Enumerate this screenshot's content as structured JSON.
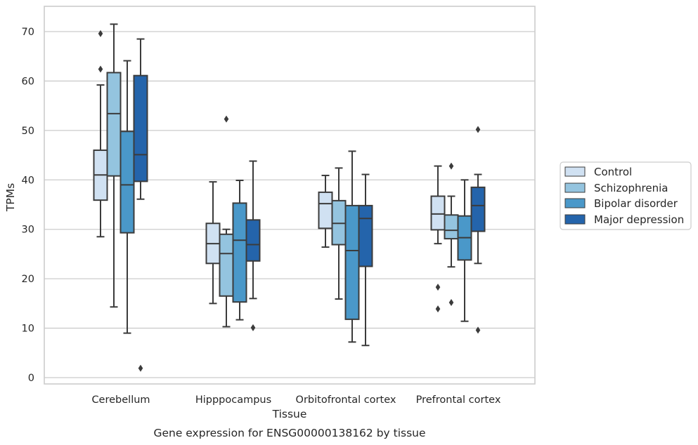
{
  "chart_data": {
    "type": "box",
    "xlabel": "Tissue",
    "ylabel": "TPMs",
    "caption": "Gene expression for ENSG00000138162 by tissue",
    "ylim": [
      -1.2,
      75
    ],
    "yticks": [
      0,
      10,
      20,
      30,
      40,
      50,
      60,
      70
    ],
    "ytick_labels": [
      "0",
      "10",
      "20",
      "30",
      "40",
      "50",
      "60",
      "70"
    ],
    "grid": "horizontal",
    "legend_position": "right",
    "categories": [
      "Cerebellum",
      "Hipppocampus",
      "Orbitofrontal cortex",
      "Prefrontal cortex"
    ],
    "series": [
      {
        "name": "Control",
        "color": "#d0e1f2",
        "boxes": [
          {
            "whislo": 28.5,
            "q1": 35.9,
            "med": 41.0,
            "q3": 46.0,
            "whishi": 59.2,
            "fliers": [
              62.4,
              69.6
            ]
          },
          {
            "whislo": 15.0,
            "q1": 23.1,
            "med": 27.1,
            "q3": 31.2,
            "whishi": 39.6,
            "fliers": []
          },
          {
            "whislo": 26.4,
            "q1": 30.2,
            "med": 35.2,
            "q3": 37.5,
            "whishi": 40.9,
            "fliers": []
          },
          {
            "whislo": 27.1,
            "q1": 29.9,
            "med": 33.1,
            "q3": 36.7,
            "whishi": 42.8,
            "fliers": [
              13.9,
              18.3
            ]
          }
        ]
      },
      {
        "name": "Schizophrenia",
        "color": "#94c4df",
        "boxes": [
          {
            "whislo": 14.3,
            "q1": 40.8,
            "med": 53.4,
            "q3": 61.7,
            "whishi": 71.5,
            "fliers": []
          },
          {
            "whislo": 10.3,
            "q1": 16.5,
            "med": 25.1,
            "q3": 29.0,
            "whishi": 30.0,
            "fliers": [
              52.3
            ]
          },
          {
            "whislo": 15.9,
            "q1": 26.9,
            "med": 31.2,
            "q3": 35.8,
            "whishi": 42.4,
            "fliers": []
          },
          {
            "whislo": 22.4,
            "q1": 28.1,
            "med": 29.8,
            "q3": 32.9,
            "whishi": 36.7,
            "fliers": [
              15.2,
              42.8
            ]
          }
        ]
      },
      {
        "name": "Bipolar disorder",
        "color": "#4a98c9",
        "boxes": [
          {
            "whislo": 9.0,
            "q1": 29.3,
            "med": 39.0,
            "q3": 49.8,
            "whishi": 64.1,
            "fliers": []
          },
          {
            "whislo": 11.7,
            "q1": 15.3,
            "med": 27.8,
            "q3": 35.3,
            "whishi": 39.9,
            "fliers": []
          },
          {
            "whislo": 7.2,
            "q1": 11.8,
            "med": 25.7,
            "q3": 34.8,
            "whishi": 45.8,
            "fliers": []
          },
          {
            "whislo": 11.4,
            "q1": 23.8,
            "med": 28.3,
            "q3": 32.7,
            "whishi": 40.0,
            "fliers": []
          }
        ]
      },
      {
        "name": "Major depression",
        "color": "#2464ab",
        "boxes": [
          {
            "whislo": 36.1,
            "q1": 39.7,
            "med": 45.1,
            "q3": 61.1,
            "whishi": 68.5,
            "fliers": [
              1.9
            ]
          },
          {
            "whislo": 16.0,
            "q1": 23.6,
            "med": 26.9,
            "q3": 31.9,
            "whishi": 43.8,
            "fliers": [
              10.1
            ]
          },
          {
            "whislo": 6.5,
            "q1": 22.5,
            "med": 32.2,
            "q3": 34.8,
            "whishi": 41.1,
            "fliers": []
          },
          {
            "whislo": 23.1,
            "q1": 29.6,
            "med": 34.8,
            "q3": 38.5,
            "whishi": 41.1,
            "fliers": [
              9.6,
              50.2
            ]
          }
        ]
      }
    ]
  },
  "colors": {
    "box_edge": "#3b3b3b",
    "grid": "#cccccc",
    "frame": "#cccccc"
  }
}
